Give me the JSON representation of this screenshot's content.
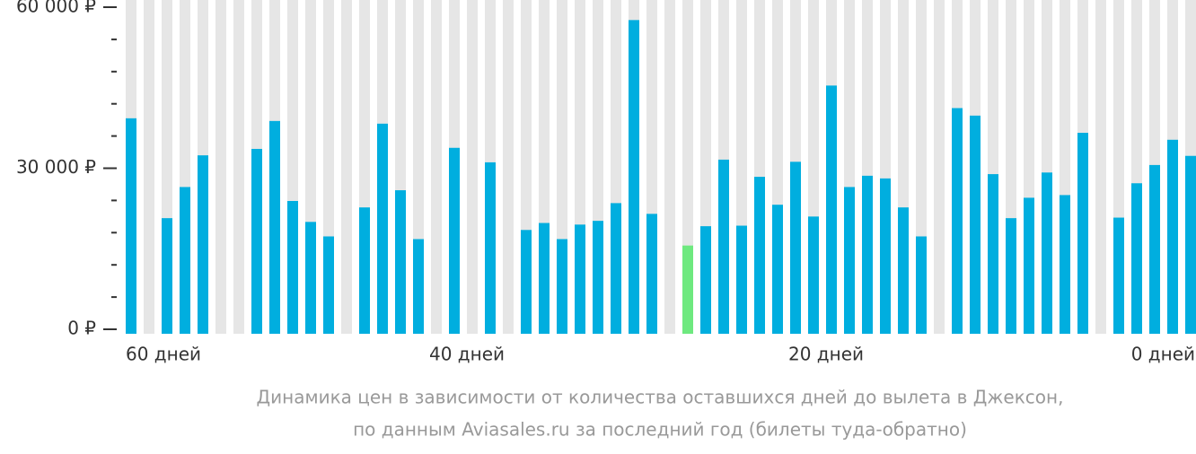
{
  "chart_data": {
    "type": "bar",
    "caption": [
      "Динамика цен в зависимости от количества оставшихся дней до вылета в Джексон,",
      "по данным Aviasales.ru за последний год (билеты туда-обратно)"
    ],
    "categories": [
      "60 дней",
      null,
      null,
      null,
      null,
      null,
      null,
      null,
      null,
      null,
      null,
      null,
      null,
      null,
      null,
      null,
      null,
      null,
      null,
      "40 дней",
      null,
      null,
      null,
      null,
      null,
      null,
      null,
      null,
      null,
      null,
      null,
      null,
      null,
      null,
      null,
      null,
      null,
      null,
      null,
      "20 дней",
      null,
      null,
      null,
      null,
      null,
      null,
      null,
      null,
      null,
      null,
      null,
      null,
      null,
      null,
      null,
      null,
      null,
      null,
      null,
      "0 дней"
    ],
    "values": [
      39300,
      null,
      20700,
      26500,
      32400,
      null,
      null,
      33600,
      38800,
      23900,
      20000,
      17300,
      null,
      22700,
      38300,
      25900,
      16800,
      null,
      33800,
      null,
      31100,
      null,
      18500,
      19800,
      16800,
      19500,
      20200,
      23500,
      57600,
      21500,
      null,
      15600,
      19200,
      31600,
      19300,
      28400,
      23200,
      31200,
      21000,
      45400,
      26500,
      28600,
      28100,
      22700,
      17300,
      null,
      41200,
      39800,
      28900,
      20700,
      24500,
      29200,
      25000,
      36600,
      null,
      20800,
      27200,
      30600,
      35300,
      32300
    ],
    "color": "#00aedf",
    "highlight_index": 31,
    "highlight_color": "#6ee97f",
    "stripe_color": "#e6e6e6",
    "ylim": [
      0,
      60000
    ],
    "yticks": [
      {
        "value": 0,
        "label": "0 ₽"
      },
      {
        "value": 30000,
        "label": "30 000 ₽"
      },
      {
        "value": 60000,
        "label": "60 000 ₽"
      }
    ],
    "minor_yticks": [
      6000,
      12000,
      18000,
      24000,
      36000,
      42000,
      48000,
      54000
    ]
  }
}
